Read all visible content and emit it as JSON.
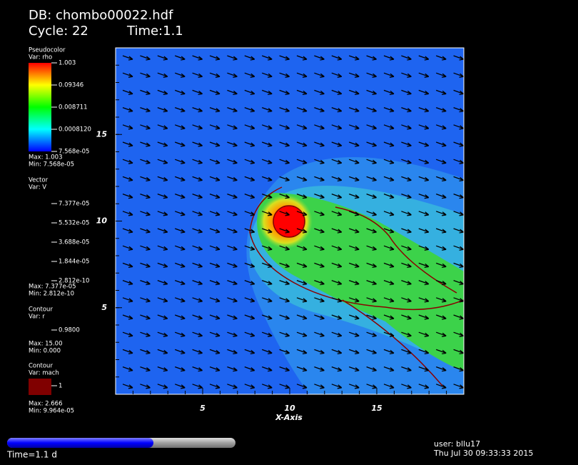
{
  "header": {
    "db": "DB: chombo00022.hdf",
    "cycle": "Cycle: 22",
    "time": "Time:1.1"
  },
  "legends": [
    {
      "title": "Pseudocolor",
      "var": "Var: rho",
      "labels": [
        "1.003",
        "0.09346",
        "0.008711",
        "0.0008120",
        "7.568e-05"
      ],
      "max": "Max: 1.003",
      "min": "Min: 7.568e-05"
    },
    {
      "title": "Vector",
      "var": "Var: V",
      "labels": [
        "7.377e-05",
        "5.532e-05",
        "3.688e-05",
        "1.844e-05",
        "2.812e-10"
      ],
      "max": "Max: 7.377e-05",
      "min": "Min: 2.812e-10"
    },
    {
      "title": "Contour",
      "var": "Var: r",
      "labels": [
        "0.9800"
      ],
      "max": "Max: 15.00",
      "min": "Min: 0.000"
    },
    {
      "title": "Contour",
      "var": "Var: mach",
      "labels": [
        "1"
      ],
      "max": "Max: 2.666",
      "min": "Min: 9.964e-05"
    }
  ],
  "plot": {
    "x_label": "X-Axis",
    "xlim": [
      0,
      20
    ],
    "ylim": [
      0,
      20
    ],
    "xticks": [
      5,
      10,
      15
    ],
    "yticks": [
      5,
      10,
      15
    ]
  },
  "footer": {
    "time": "Time=1.1 d",
    "user": "user: bllu17",
    "date": "Thu Jul 30 09:33:33 2015"
  }
}
